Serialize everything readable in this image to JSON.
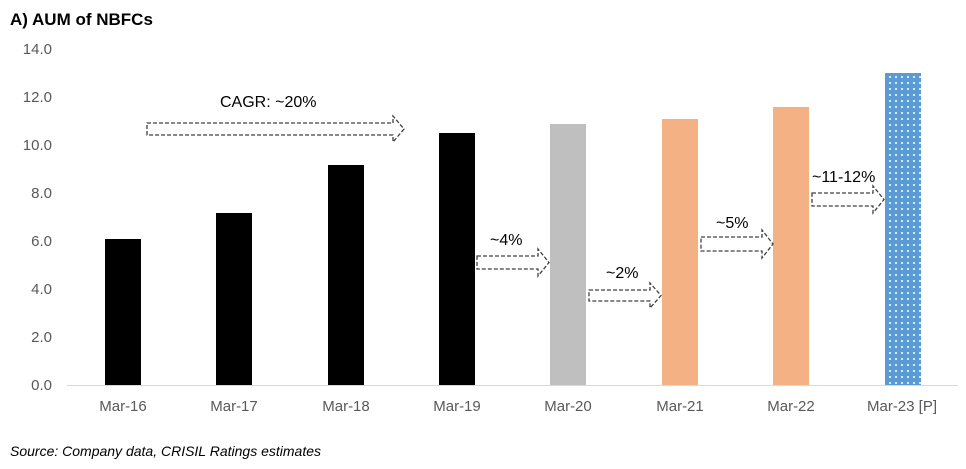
{
  "title": "A) AUM of NBFCs",
  "source": "Source: Company data, CRISIL Ratings estimates",
  "colors": {
    "actual": "#000000",
    "covid_year": "#BFBFBF",
    "recovery": "#F4B183",
    "projected": "#5B9BD5"
  },
  "y_ticks": [
    "0.0",
    "2.0",
    "4.0",
    "6.0",
    "8.0",
    "10.0",
    "12.0",
    "14.0"
  ],
  "annotations": {
    "cagr": "CAGR: ~20%",
    "g20": "~4%",
    "g21": "~2%",
    "g22": "~5%",
    "g23": "~11-12%"
  },
  "chart_data": {
    "type": "bar",
    "title": "A) AUM of NBFCs",
    "xlabel": "",
    "ylabel": "",
    "ylim": [
      0,
      14
    ],
    "yticks": [
      0,
      2,
      4,
      6,
      8,
      10,
      12,
      14
    ],
    "grid": false,
    "legend": "none",
    "categories": [
      "Mar-16",
      "Mar-17",
      "Mar-18",
      "Mar-19",
      "Mar-20",
      "Mar-21",
      "Mar-22",
      "Mar-23 [P]"
    ],
    "values": [
      6.1,
      7.2,
      9.2,
      10.5,
      10.9,
      11.1,
      11.6,
      13.0
    ],
    "bar_colors": [
      "#000000",
      "#000000",
      "#000000",
      "#000000",
      "#BFBFBF",
      "#F4B183",
      "#F4B183",
      "#5B9BD5"
    ],
    "annotations": [
      {
        "text": "CAGR: ~20%",
        "span": [
          "Mar-16",
          "Mar-19"
        ]
      },
      {
        "text": "~4%",
        "span": [
          "Mar-19",
          "Mar-20"
        ]
      },
      {
        "text": "~2%",
        "span": [
          "Mar-20",
          "Mar-21"
        ]
      },
      {
        "text": "~5%",
        "span": [
          "Mar-21",
          "Mar-22"
        ]
      },
      {
        "text": "~11-12%",
        "span": [
          "Mar-22",
          "Mar-23 [P]"
        ]
      }
    ],
    "source": "Source: Company data, CRISIL Ratings estimates"
  }
}
